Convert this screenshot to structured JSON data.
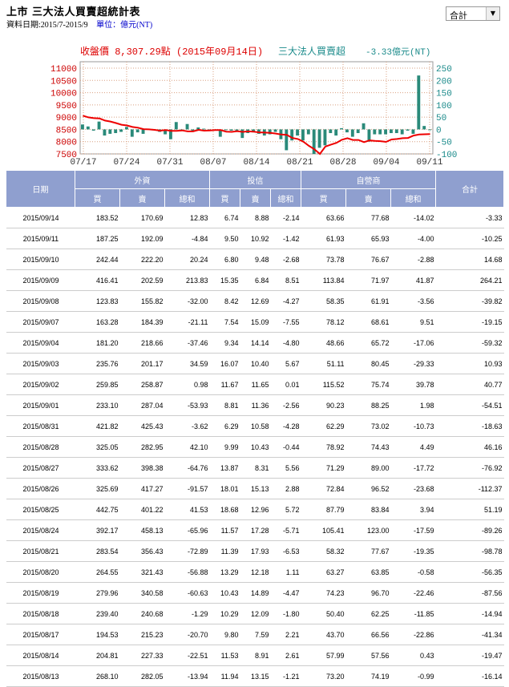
{
  "header": {
    "title": "上市 三大法人買賣超統計表",
    "date_range": "資料日期:2015/7-2015/9",
    "unit": "單位：億元(NT)"
  },
  "selector": {
    "value": "合計"
  },
  "chart_data": {
    "type": "bar+line",
    "left_title": "收盤價 8,307.29點 (2015年09月14日)",
    "right_title": "三大法人買賣超",
    "right_value": "-3.33億元(NT)",
    "left_axis": {
      "ticks": [
        11000,
        10500,
        10000,
        9500,
        9000,
        8500,
        8000,
        7500
      ],
      "range": [
        7500,
        11000
      ]
    },
    "right_axis": {
      "ticks": [
        250,
        200,
        150,
        100,
        50,
        0,
        -50,
        -100
      ],
      "range": [
        -100,
        250
      ]
    },
    "x_ticks": [
      "07/17",
      "07/24",
      "07/31",
      "08/07",
      "08/14",
      "08/21",
      "08/28",
      "09/04",
      "09/11"
    ],
    "bars": [
      20,
      12,
      -5,
      32,
      -25,
      -18,
      -15,
      -10,
      10,
      -30,
      -12,
      -18,
      3,
      -3,
      -10,
      -20,
      -40,
      30,
      -5,
      22,
      -5,
      8,
      3,
      -2,
      -5,
      -30,
      -3,
      -5,
      -5,
      -35,
      -15,
      -12,
      -18,
      -25,
      -20,
      -10,
      -40,
      -85,
      -45,
      -25,
      -45,
      -20,
      -100,
      -75,
      -65,
      -15,
      -25,
      5,
      -12,
      -30,
      -15,
      25,
      -50,
      -20,
      -20,
      -20,
      -15,
      -15,
      -20,
      -5,
      -18,
      220,
      14,
      -3
    ],
    "price": [
      9060,
      8990,
      8960,
      8950,
      8860,
      8820,
      8760,
      8690,
      8660,
      8600,
      8570,
      8510,
      8500,
      8480,
      8450,
      8470,
      8440,
      8440,
      8460,
      8420,
      8420,
      8480,
      8450,
      8460,
      8470,
      8470,
      8410,
      8400,
      8430,
      8400,
      8420,
      8410,
      8380,
      8370,
      8360,
      8330,
      8290,
      8280,
      8150,
      8110,
      8000,
      7830,
      7690,
      7500,
      7800,
      7880,
      7950,
      8080,
      8140,
      8070,
      8070,
      7980,
      8050,
      8030,
      8020,
      7990,
      8090,
      8110,
      8140,
      8150,
      8250,
      8290,
      8300,
      8307
    ]
  },
  "table": {
    "headers": {
      "date": "日期",
      "groups": [
        "外資",
        "投信",
        "自營商"
      ],
      "total": "合計",
      "sub": [
        "買",
        "賣",
        "總和"
      ]
    },
    "rows": [
      [
        "2015/09/14",
        "183.52",
        "170.69",
        "12.83",
        "6.74",
        "8.88",
        "-2.14",
        "63.66",
        "77.68",
        "-14.02",
        "-3.33"
      ],
      [
        "2015/09/11",
        "187.25",
        "192.09",
        "-4.84",
        "9.50",
        "10.92",
        "-1.42",
        "61.93",
        "65.93",
        "-4.00",
        "-10.25"
      ],
      [
        "2015/09/10",
        "242.44",
        "222.20",
        "20.24",
        "6.80",
        "9.48",
        "-2.68",
        "73.78",
        "76.67",
        "-2.88",
        "14.68"
      ],
      [
        "2015/09/09",
        "416.41",
        "202.59",
        "213.83",
        "15.35",
        "6.84",
        "8.51",
        "113.84",
        "71.97",
        "41.87",
        "264.21"
      ],
      [
        "2015/09/08",
        "123.83",
        "155.82",
        "-32.00",
        "8.42",
        "12.69",
        "-4.27",
        "58.35",
        "61.91",
        "-3.56",
        "-39.82"
      ],
      [
        "2015/09/07",
        "163.28",
        "184.39",
        "-21.11",
        "7.54",
        "15.09",
        "-7.55",
        "78.12",
        "68.61",
        "9.51",
        "-19.15"
      ],
      [
        "2015/09/04",
        "181.20",
        "218.66",
        "-37.46",
        "9.34",
        "14.14",
        "-4.80",
        "48.66",
        "65.72",
        "-17.06",
        "-59.32"
      ],
      [
        "2015/09/03",
        "235.76",
        "201.17",
        "34.59",
        "16.07",
        "10.40",
        "5.67",
        "51.11",
        "80.45",
        "-29.33",
        "10.93"
      ],
      [
        "2015/09/02",
        "259.85",
        "258.87",
        "0.98",
        "11.67",
        "11.65",
        "0.01",
        "115.52",
        "75.74",
        "39.78",
        "40.77"
      ],
      [
        "2015/09/01",
        "233.10",
        "287.04",
        "-53.93",
        "8.81",
        "11.36",
        "-2.56",
        "90.23",
        "88.25",
        "1.98",
        "-54.51"
      ],
      [
        "2015/08/31",
        "421.82",
        "425.43",
        "-3.62",
        "6.29",
        "10.58",
        "-4.28",
        "62.29",
        "73.02",
        "-10.73",
        "-18.63"
      ],
      [
        "2015/08/28",
        "325.05",
        "282.95",
        "42.10",
        "9.99",
        "10.43",
        "-0.44",
        "78.92",
        "74.43",
        "4.49",
        "46.16"
      ],
      [
        "2015/08/27",
        "333.62",
        "398.38",
        "-64.76",
        "13.87",
        "8.31",
        "5.56",
        "71.29",
        "89.00",
        "-17.72",
        "-76.92"
      ],
      [
        "2015/08/26",
        "325.69",
        "417.27",
        "-91.57",
        "18.01",
        "15.13",
        "2.88",
        "72.84",
        "96.52",
        "-23.68",
        "-112.37"
      ],
      [
        "2015/08/25",
        "442.75",
        "401.22",
        "41.53",
        "18.68",
        "12.96",
        "5.72",
        "87.79",
        "83.84",
        "3.94",
        "51.19"
      ],
      [
        "2015/08/24",
        "392.17",
        "458.13",
        "-65.96",
        "11.57",
        "17.28",
        "-5.71",
        "105.41",
        "123.00",
        "-17.59",
        "-89.26"
      ],
      [
        "2015/08/21",
        "283.54",
        "356.43",
        "-72.89",
        "11.39",
        "17.93",
        "-6.53",
        "58.32",
        "77.67",
        "-19.35",
        "-98.78"
      ],
      [
        "2015/08/20",
        "264.55",
        "321.43",
        "-56.88",
        "13.29",
        "12.18",
        "1.11",
        "63.27",
        "63.85",
        "-0.58",
        "-56.35"
      ],
      [
        "2015/08/19",
        "279.96",
        "340.58",
        "-60.63",
        "10.43",
        "14.89",
        "-4.47",
        "74.23",
        "96.70",
        "-22.46",
        "-87.56"
      ],
      [
        "2015/08/18",
        "239.40",
        "240.68",
        "-1.29",
        "10.29",
        "12.09",
        "-1.80",
        "50.40",
        "62.25",
        "-11.85",
        "-14.94"
      ],
      [
        "2015/08/17",
        "194.53",
        "215.23",
        "-20.70",
        "9.80",
        "7.59",
        "2.21",
        "43.70",
        "66.56",
        "-22.86",
        "-41.34"
      ],
      [
        "2015/08/14",
        "204.81",
        "227.33",
        "-22.51",
        "11.53",
        "8.91",
        "2.61",
        "57.99",
        "57.56",
        "0.43",
        "-19.47"
      ],
      [
        "2015/08/13",
        "268.10",
        "282.05",
        "-13.94",
        "11.94",
        "13.15",
        "-1.21",
        "73.20",
        "74.19",
        "-0.99",
        "-16.14"
      ]
    ]
  }
}
